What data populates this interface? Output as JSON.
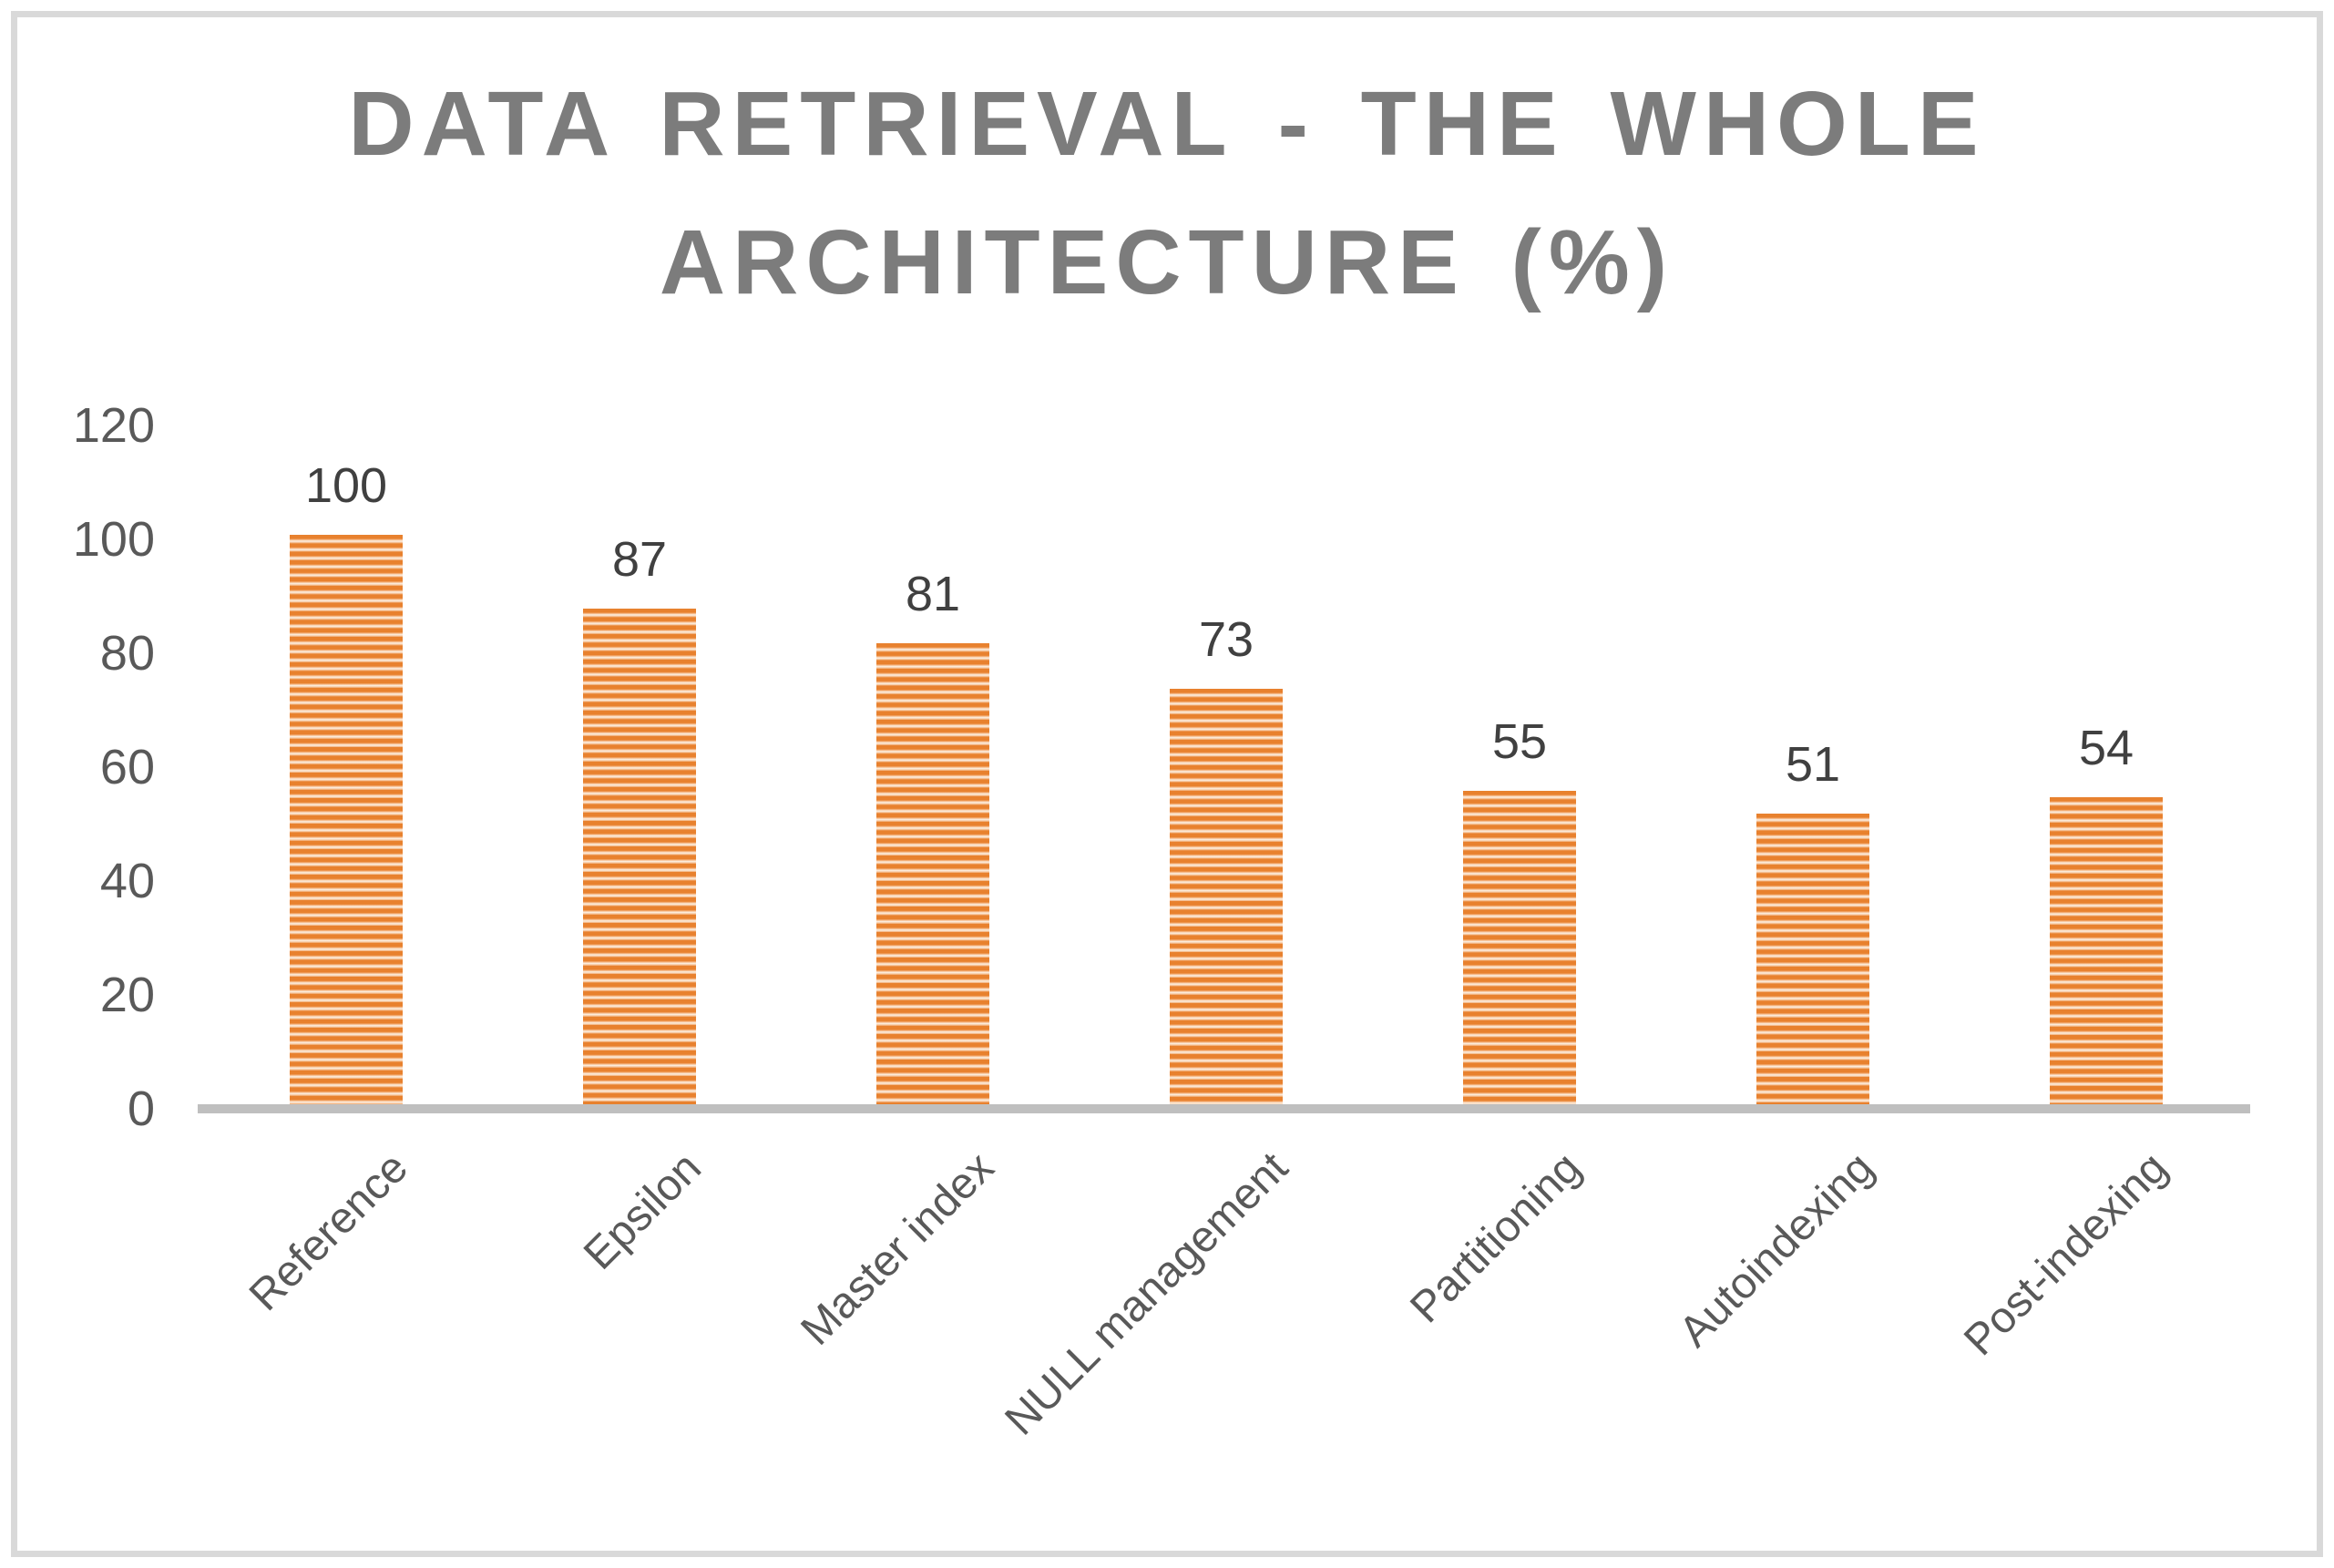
{
  "title_lines": [
    "DATA RETRIEVAL - THE WHOLE",
    "ARCHITECTURE (%)"
  ],
  "chart_data": {
    "type": "bar",
    "title": "DATA RETRIEVAL - THE WHOLE ARCHITECTURE (%)",
    "categories": [
      "Reference",
      "Epsilon",
      "Master index",
      "NULL management",
      "Partitioning",
      "Autoindexing",
      "Post-indexing"
    ],
    "values": [
      100,
      87,
      81,
      73,
      55,
      51,
      54
    ],
    "data_labels": [
      "100",
      "87",
      "81",
      "73",
      "55",
      "51",
      "54"
    ],
    "xlabel": "",
    "ylabel": "",
    "ylim": [
      0,
      120
    ],
    "yticks": [
      0,
      20,
      40,
      60,
      80,
      100,
      120
    ],
    "grid": false,
    "legend": false,
    "category_label_rotation_deg": -45,
    "colors": {
      "bar_stripe": "#e8812e",
      "bar_stripe_light": "#fcecdb",
      "axis_line": "#bfbfbf",
      "frame_border": "#d9d9d9",
      "title_text": "#7c7c7c",
      "tick_text": "#595959",
      "data_label_text": "#404040",
      "category_text": "#595959",
      "background": "#ffffff"
    }
  }
}
